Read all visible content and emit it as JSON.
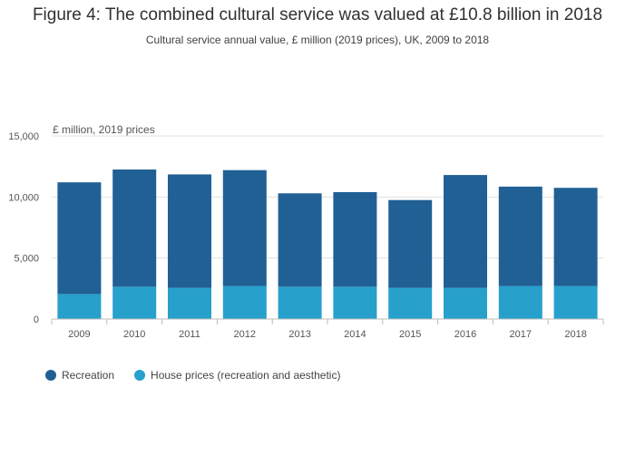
{
  "title": "Figure 4: The combined cultural service was valued at £10.8 billion in 2018",
  "subtitle": "Cultural service annual value, £ million (2019 prices), UK, 2009 to 2018",
  "colors": {
    "recreation": "#206095",
    "house_prices": "#27a0cc",
    "grid": "#e0e0e0",
    "axis": "#bcbcbc"
  },
  "chart_data": {
    "type": "bar",
    "stacked": true,
    "title": "Figure 4: The combined cultural service was valued at £10.8 billion in 2018",
    "ylabel": "£ million, 2019 prices",
    "xlabel": "",
    "categories": [
      "2009",
      "2010",
      "2011",
      "2012",
      "2013",
      "2014",
      "2015",
      "2016",
      "2017",
      "2018"
    ],
    "ylim": [
      0,
      15000
    ],
    "yticks": [
      0,
      5000,
      10000,
      15000
    ],
    "ytick_labels": [
      "0",
      "5,000",
      "10,000",
      "15,000"
    ],
    "legend_position": "bottom-left",
    "series": [
      {
        "name": "House prices (recreation and aesthetic)",
        "values": [
          2050,
          2650,
          2550,
          2700,
          2650,
          2650,
          2550,
          2550,
          2700,
          2700
        ]
      },
      {
        "name": "Recreation",
        "values": [
          9150,
          9600,
          9300,
          9500,
          7650,
          7750,
          7200,
          9250,
          8150,
          8050
        ]
      }
    ],
    "legend": [
      "Recreation",
      "House prices (recreation and aesthetic)"
    ]
  }
}
